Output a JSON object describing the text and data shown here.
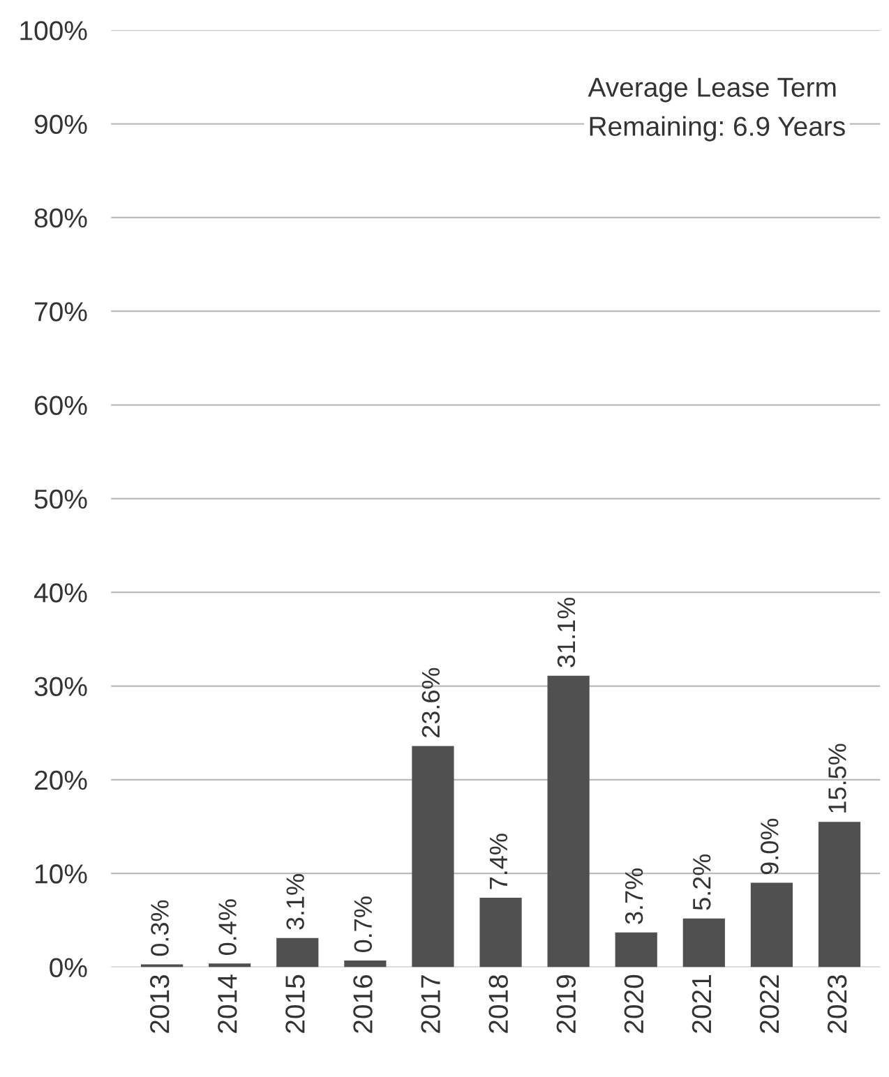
{
  "chart_data": {
    "type": "bar",
    "categories": [
      "2013",
      "2014",
      "2015",
      "2016",
      "2017",
      "2018",
      "2019",
      "2020",
      "2021",
      "2022",
      "2023"
    ],
    "values": [
      0.3,
      0.4,
      3.1,
      0.7,
      23.6,
      7.4,
      31.1,
      3.7,
      5.2,
      9.0,
      15.5
    ],
    "value_labels": [
      "0.3%",
      "0.4%",
      "3.1%",
      "0.7%",
      "23.6%",
      "7.4%",
      "31.1%",
      "3.7%",
      "5.2%",
      "9.0%",
      "15.5%"
    ],
    "color": "#505050",
    "ylim": [
      0,
      100
    ],
    "yticks": [
      {
        "value": 0,
        "label": "0%"
      },
      {
        "value": 10,
        "label": "10%"
      },
      {
        "value": 20,
        "label": "20%"
      },
      {
        "value": 30,
        "label": "30%"
      },
      {
        "value": 40,
        "label": "40%"
      },
      {
        "value": 50,
        "label": "50%"
      },
      {
        "value": 60,
        "label": "60%"
      },
      {
        "value": 70,
        "label": "70%"
      },
      {
        "value": 80,
        "label": "80%"
      },
      {
        "value": 90,
        "label": "90%"
      },
      {
        "value": 100,
        "label": "100%"
      }
    ],
    "grid": "y",
    "legend": false,
    "annotations": [
      "Average Lease Term\nRemaining: 6.9 Years"
    ]
  }
}
